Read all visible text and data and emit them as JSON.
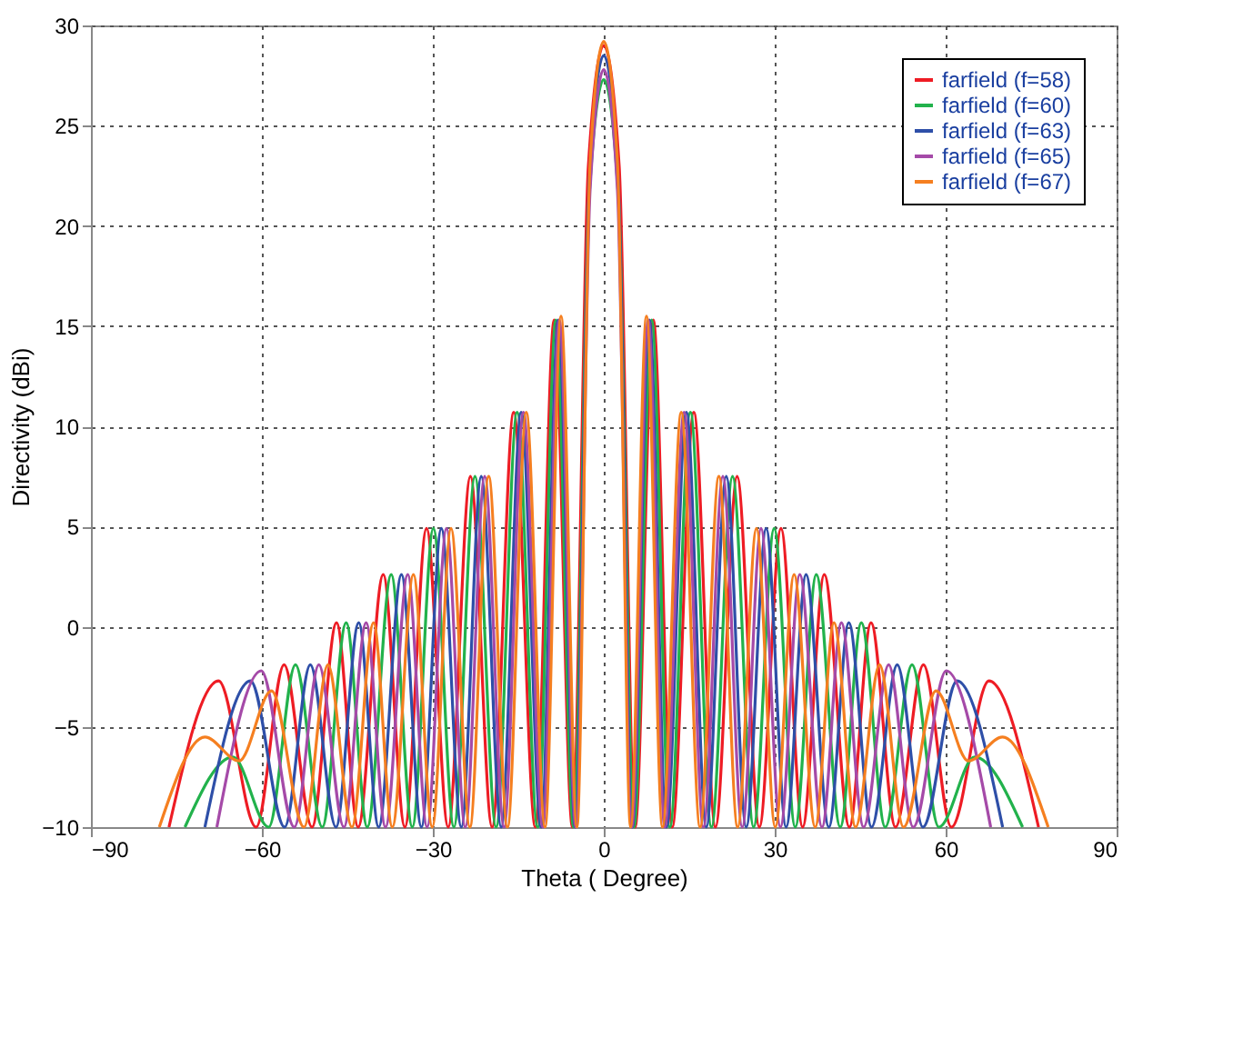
{
  "chart_data": {
    "type": "line",
    "xlabel": "Theta ( Degree)",
    "ylabel": "Directivity (dBi)",
    "xlim": [
      -90,
      90
    ],
    "xticks": [
      -90,
      -60,
      -30,
      0,
      30,
      60,
      90
    ],
    "ylim": [
      -10,
      30
    ],
    "yticks": [
      -10,
      -5,
      0,
      5,
      10,
      15,
      20,
      25,
      30
    ],
    "grid": true,
    "legend": "top right",
    "marker": "none",
    "line_style": "solid",
    "series": [
      {
        "name": "farfield (f=58)",
        "color": "#ee1c24",
        "x": [
          -76.3,
          -67.6,
          -61,
          -56.1,
          -51.2,
          -46.9,
          -43.1,
          -38.7,
          -34.9,
          -31.1,
          -27.3,
          -23.4,
          -19.6,
          -15.8,
          -12,
          -8.7,
          -5.5,
          -2.7,
          0,
          2.7,
          5.5,
          8.7,
          12,
          15.8,
          19.6,
          23.4,
          27.3,
          31.1,
          34.9,
          38.7,
          43.1,
          46.9,
          51.2,
          56.1,
          61,
          67.6,
          76.3
        ],
        "values": [
          -10,
          -2.7,
          -10,
          -1.9,
          -10,
          0.2,
          -10,
          2.6,
          -10,
          4.9,
          -10,
          7.5,
          -10,
          10.7,
          -10,
          15.3,
          -10,
          23,
          29,
          23,
          -10,
          15.3,
          -10,
          10.7,
          -10,
          7.5,
          -10,
          4.9,
          -10,
          2.6,
          -10,
          0.2,
          -10,
          -1.9,
          -10,
          -2.7,
          -10
        ]
      },
      {
        "name": "farfield (f=60)",
        "color": "#22b24c",
        "x": [
          -73.5,
          -65.1,
          -58.8,
          -54.1,
          -49.4,
          -45.2,
          -41.5,
          -37.3,
          -33.6,
          -29.9,
          -26.3,
          -22.6,
          -18.9,
          -15.2,
          -11.6,
          -8.4,
          -5.3,
          -2.6,
          0,
          2.6,
          5.3,
          8.4,
          11.6,
          15.2,
          18.9,
          22.6,
          26.3,
          29.9,
          33.6,
          37.3,
          41.5,
          45.2,
          49.4,
          54.1,
          58.8,
          65.1,
          73.5
        ],
        "values": [
          -10,
          -6.5,
          -10,
          -1.9,
          -10,
          0.2,
          -10,
          2.6,
          -10,
          4.9,
          -10,
          7.5,
          -10,
          10.7,
          -10,
          15.3,
          -10,
          21.3,
          27.3,
          21.3,
          -10,
          15.3,
          -10,
          10.7,
          -10,
          7.5,
          -10,
          4.9,
          -10,
          2.6,
          -10,
          0.2,
          -10,
          -1.9,
          -10,
          -6.5,
          -10
        ]
      },
      {
        "name": "farfield (f=63)",
        "color": "#2e4fa8",
        "x": [
          -70,
          -62,
          -56,
          -51.5,
          -47,
          -43,
          -39.5,
          -35.5,
          -32,
          -28.5,
          -25,
          -21.5,
          -18,
          -14.5,
          -11,
          -8,
          -5,
          -2.5,
          0,
          2.5,
          5,
          8,
          11,
          14.5,
          18,
          21.5,
          25,
          28.5,
          32,
          35.5,
          39.5,
          43,
          47,
          51.5,
          56,
          62,
          70
        ],
        "values": [
          -10,
          -2.7,
          -10,
          -1.9,
          -10,
          0.2,
          -10,
          2.6,
          -10,
          4.9,
          -10,
          7.5,
          -10,
          10.7,
          -10,
          15.3,
          -10,
          22.5,
          28.5,
          22.5,
          -10,
          15.3,
          -10,
          10.7,
          -10,
          7.5,
          -10,
          4.9,
          -10,
          2.6,
          -10,
          0.2,
          -10,
          -1.9,
          -10,
          -2.7,
          -10
        ]
      },
      {
        "name": "farfield (f=65)",
        "color": "#a54aa8",
        "x": [
          -67.9,
          -60.1,
          -54.3,
          -50,
          -45.6,
          -41.7,
          -38.3,
          -34.4,
          -31,
          -27.6,
          -24.3,
          -20.9,
          -17.5,
          -14.1,
          -10.7,
          -7.8,
          -4.9,
          -2.4,
          0,
          2.4,
          4.9,
          7.8,
          10.7,
          14.1,
          17.5,
          20.9,
          24.3,
          27.6,
          31,
          34.4,
          38.3,
          41.7,
          45.6,
          50,
          54.3,
          60.1,
          67.9
        ],
        "values": [
          -10,
          -2.2,
          -10,
          -1.9,
          -10,
          0.2,
          -10,
          2.6,
          -10,
          4.9,
          -10,
          7.5,
          -10,
          10.7,
          -10,
          15.3,
          -10,
          21.8,
          27.8,
          21.8,
          -10,
          15.3,
          -10,
          10.7,
          -10,
          7.5,
          -10,
          4.9,
          -10,
          2.6,
          -10,
          0.2,
          -10,
          -1.9,
          -10,
          -2.2,
          -10
        ]
      },
      {
        "name": "farfield (f=67)",
        "color": "#f57f20",
        "x": [
          -78,
          -70,
          -64,
          -58.3,
          -52.6,
          -48.4,
          -44.2,
          -40.4,
          -37.1,
          -33.4,
          -30.1,
          -26.8,
          -23.5,
          -20.2,
          -16.9,
          -13.6,
          -10.3,
          -7.5,
          -4.7,
          -2.4,
          0,
          2.4,
          4.7,
          7.5,
          10.3,
          13.6,
          16.9,
          20.2,
          23.5,
          26.8,
          30.1,
          33.4,
          37.1,
          40.4,
          44.2,
          48.4,
          52.6,
          58.3,
          64,
          70,
          78
        ],
        "values": [
          -10,
          -5.5,
          -6.7,
          -3.2,
          -10,
          -1.9,
          -10,
          0.2,
          -10,
          2.6,
          -10,
          4.9,
          -10,
          7.5,
          -10,
          10.7,
          -10,
          15.5,
          -10,
          23.2,
          29.2,
          23.2,
          -10,
          15.5,
          -10,
          10.7,
          -10,
          7.5,
          -10,
          4.9,
          -10,
          2.6,
          -10,
          0.2,
          -10,
          -1.9,
          -10,
          -3.2,
          -6.7,
          -5.5,
          -10
        ]
      }
    ]
  }
}
